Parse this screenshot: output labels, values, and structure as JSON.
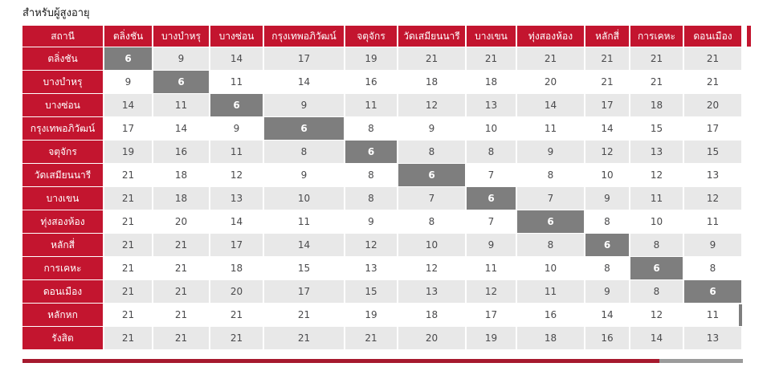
{
  "title": "สำหรับผู้สูงอายุ",
  "chart_data": {
    "type": "table",
    "title": "สำหรับผู้สูงอายุ",
    "corner_header": "สถานี",
    "columns": [
      "ตลิ่งชัน",
      "บางบำหรุ",
      "บางซ่อน",
      "กรุงเทพอภิวัฒน์",
      "จตุจักร",
      "วัดเสมียนนารี",
      "บางเขน",
      "ทุ่งสองห้อง",
      "หลักสี่",
      "การเคหะ",
      "ดอนเมือง"
    ],
    "rows": [
      {
        "station": "ตลิ่งชัน",
        "fares": [
          6,
          9,
          14,
          17,
          19,
          21,
          21,
          21,
          21,
          21,
          21
        ]
      },
      {
        "station": "บางบำหรุ",
        "fares": [
          9,
          6,
          11,
          14,
          16,
          18,
          18,
          20,
          21,
          21,
          21
        ]
      },
      {
        "station": "บางซ่อน",
        "fares": [
          14,
          11,
          6,
          9,
          11,
          12,
          13,
          14,
          17,
          18,
          20
        ]
      },
      {
        "station": "กรุงเทพอภิวัฒน์",
        "fares": [
          17,
          14,
          9,
          6,
          8,
          9,
          10,
          11,
          14,
          15,
          17
        ]
      },
      {
        "station": "จตุจักร",
        "fares": [
          19,
          16,
          11,
          8,
          6,
          8,
          8,
          9,
          12,
          13,
          15
        ]
      },
      {
        "station": "วัดเสมียนนารี",
        "fares": [
          21,
          18,
          12,
          9,
          8,
          6,
          7,
          8,
          10,
          12,
          13
        ]
      },
      {
        "station": "บางเขน",
        "fares": [
          21,
          18,
          13,
          10,
          8,
          7,
          6,
          7,
          9,
          11,
          12
        ]
      },
      {
        "station": "ทุ่งสองห้อง",
        "fares": [
          21,
          20,
          14,
          11,
          9,
          8,
          7,
          6,
          8,
          10,
          11
        ]
      },
      {
        "station": "หลักสี่",
        "fares": [
          21,
          21,
          17,
          14,
          12,
          10,
          9,
          8,
          6,
          8,
          9
        ]
      },
      {
        "station": "การเคหะ",
        "fares": [
          21,
          21,
          18,
          15,
          13,
          12,
          11,
          10,
          8,
          6,
          8
        ]
      },
      {
        "station": "ดอนเมือง",
        "fares": [
          21,
          21,
          20,
          17,
          15,
          13,
          12,
          11,
          9,
          8,
          6
        ]
      },
      {
        "station": "หลักหก",
        "fares": [
          21,
          21,
          21,
          21,
          19,
          18,
          17,
          16,
          14,
          12,
          11
        ]
      },
      {
        "station": "รังสิต",
        "fares": [
          21,
          21,
          21,
          21,
          21,
          20,
          19,
          18,
          16,
          14,
          13
        ]
      }
    ],
    "diagonal_highlight_value": 6,
    "layout": {
      "stripe_even_rows": true,
      "diagonal_cells_shaded": true,
      "legend_position": "none",
      "grid": "white-gaps"
    }
  },
  "colors": {
    "header_red": "#c3152f",
    "diagonal_gray": "#7e7e7e",
    "stripe_gray": "#e8e8e8",
    "number_text": "#4a4a4c",
    "bar_red": "#a6192e",
    "bar_gray": "#9b9b9b"
  }
}
